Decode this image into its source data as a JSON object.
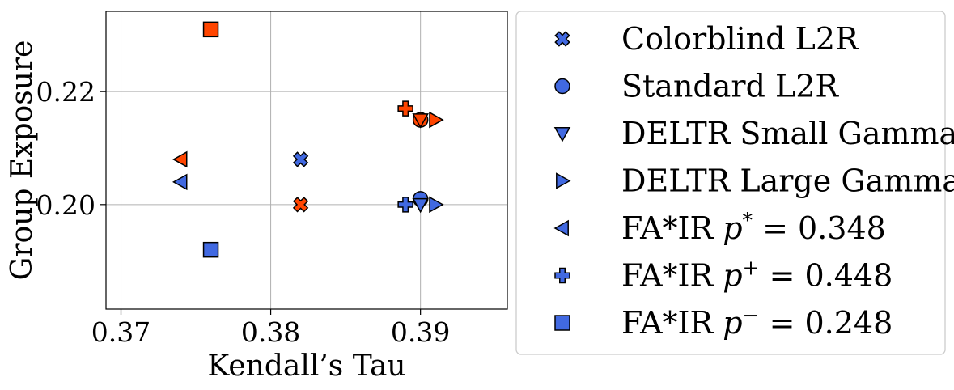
{
  "chart_data": {
    "type": "scatter",
    "title": "",
    "xlabel": "Kendall’s Tau",
    "ylabel": "Group Exposure",
    "xlim": [
      0.369,
      0.3958
    ],
    "ylim": [
      0.1815,
      0.2342
    ],
    "x_ticks": [
      0.37,
      0.38,
      0.39
    ],
    "y_ticks": [
      0.2,
      0.22
    ],
    "x_tick_labels": [
      "0.37",
      "0.38",
      "0.39"
    ],
    "y_tick_labels": [
      "0.20",
      "0.22"
    ],
    "grid": true,
    "legend_position": "outside-right",
    "colors": {
      "blue": "#4169e1",
      "red": "#ff4500",
      "edge": "#000000"
    },
    "series": [
      {
        "legend": "Colorblind L2R",
        "marker": "x-cross",
        "points": [
          {
            "x": 0.382,
            "y": 0.208,
            "group": "blue"
          },
          {
            "x": 0.382,
            "y": 0.2,
            "group": "red"
          }
        ]
      },
      {
        "legend": "Standard L2R",
        "marker": "circle",
        "points": [
          {
            "x": 0.39,
            "y": 0.201,
            "group": "blue"
          },
          {
            "x": 0.39,
            "y": 0.215,
            "group": "red"
          }
        ]
      },
      {
        "legend": "DELTR Small Gamma",
        "marker": "triangle-down",
        "points": [
          {
            "x": 0.39,
            "y": 0.2,
            "group": "blue"
          },
          {
            "x": 0.39,
            "y": 0.215,
            "group": "red"
          }
        ]
      },
      {
        "legend": "DELTR Large Gamma",
        "marker": "triangle-right",
        "points": [
          {
            "x": 0.391,
            "y": 0.2,
            "group": "blue"
          },
          {
            "x": 0.391,
            "y": 0.215,
            "group": "red"
          }
        ]
      },
      {
        "legend": "FA*IR p* = 0.348",
        "marker": "triangle-left",
        "points": [
          {
            "x": 0.374,
            "y": 0.204,
            "group": "blue"
          },
          {
            "x": 0.374,
            "y": 0.208,
            "group": "red"
          }
        ]
      },
      {
        "legend": "FA*IR p+ = 0.448",
        "marker": "plus",
        "points": [
          {
            "x": 0.389,
            "y": 0.2,
            "group": "blue"
          },
          {
            "x": 0.389,
            "y": 0.217,
            "group": "red"
          }
        ]
      },
      {
        "legend": "FA*IR p− = 0.248",
        "marker": "square",
        "points": [
          {
            "x": 0.376,
            "y": 0.192,
            "group": "blue"
          },
          {
            "x": 0.376,
            "y": 0.231,
            "group": "red"
          }
        ]
      }
    ]
  }
}
